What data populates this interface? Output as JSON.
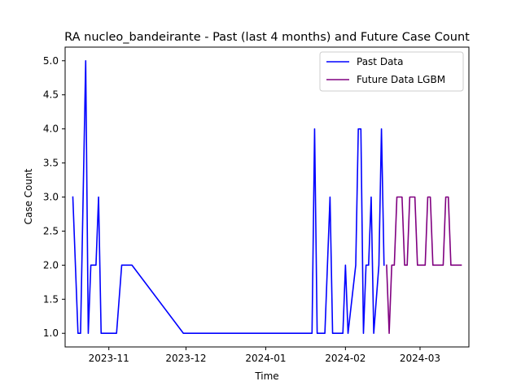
{
  "chart_data": {
    "type": "line",
    "title": "RA nucleo_bandeirante - Past (last 4 months) and Future Case Count",
    "xlabel": "Time",
    "ylabel": "Case Count",
    "xlim": [
      "2023-10-15",
      "2024-03-20"
    ],
    "ylim": [
      0.8,
      5.2
    ],
    "x_ticks": [
      {
        "date": "2023-11-01",
        "label": "2023-11"
      },
      {
        "date": "2023-12-01",
        "label": "2023-12"
      },
      {
        "date": "2024-01-01",
        "label": "2024-01"
      },
      {
        "date": "2024-02-01",
        "label": "2024-02"
      },
      {
        "date": "2024-03-01",
        "label": "2024-03"
      }
    ],
    "y_ticks": [
      {
        "value": 1.0,
        "label": "1.0"
      },
      {
        "value": 1.5,
        "label": "1.5"
      },
      {
        "value": 2.0,
        "label": "2.0"
      },
      {
        "value": 2.5,
        "label": "2.5"
      },
      {
        "value": 3.0,
        "label": "3.0"
      },
      {
        "value": 3.5,
        "label": "3.5"
      },
      {
        "value": 4.0,
        "label": "4.0"
      },
      {
        "value": 4.5,
        "label": "4.5"
      },
      {
        "value": 5.0,
        "label": "5.0"
      }
    ],
    "legend_position": "top-right",
    "grid": false,
    "series": [
      {
        "name": "Past Data",
        "color": "#0000ff",
        "points": [
          [
            "2023-10-18",
            3
          ],
          [
            "2023-10-20",
            1
          ],
          [
            "2023-10-21",
            1
          ],
          [
            "2023-10-23",
            5
          ],
          [
            "2023-10-24",
            1
          ],
          [
            "2023-10-25",
            2
          ],
          [
            "2023-10-27",
            2
          ],
          [
            "2023-10-28",
            3
          ],
          [
            "2023-10-29",
            1
          ],
          [
            "2023-11-04",
            1
          ],
          [
            "2023-11-06",
            2
          ],
          [
            "2023-11-10",
            2
          ],
          [
            "2023-11-30",
            1
          ],
          [
            "2024-01-19",
            1
          ],
          [
            "2024-01-20",
            4
          ],
          [
            "2024-01-21",
            1
          ],
          [
            "2024-01-24",
            1
          ],
          [
            "2024-01-26",
            3
          ],
          [
            "2024-01-27",
            1
          ],
          [
            "2024-01-31",
            1
          ],
          [
            "2024-02-01",
            2
          ],
          [
            "2024-02-02",
            1
          ],
          [
            "2024-02-05",
            2
          ],
          [
            "2024-02-06",
            4
          ],
          [
            "2024-02-07",
            4
          ],
          [
            "2024-02-08",
            1
          ],
          [
            "2024-02-09",
            2
          ],
          [
            "2024-02-10",
            2
          ],
          [
            "2024-02-11",
            3
          ],
          [
            "2024-02-12",
            1
          ],
          [
            "2024-02-14",
            2
          ],
          [
            "2024-02-15",
            4
          ],
          [
            "2024-02-16",
            2
          ]
        ]
      },
      {
        "name": "Future Data LGBM",
        "color": "#800080",
        "points": [
          [
            "2024-02-17",
            2
          ],
          [
            "2024-02-18",
            1
          ],
          [
            "2024-02-19",
            2
          ],
          [
            "2024-02-20",
            2
          ],
          [
            "2024-02-21",
            3
          ],
          [
            "2024-02-23",
            3
          ],
          [
            "2024-02-24",
            2
          ],
          [
            "2024-02-25",
            2
          ],
          [
            "2024-02-26",
            3
          ],
          [
            "2024-02-28",
            3
          ],
          [
            "2024-02-29",
            2
          ],
          [
            "2024-03-03",
            2
          ],
          [
            "2024-03-04",
            3
          ],
          [
            "2024-03-05",
            3
          ],
          [
            "2024-03-06",
            2
          ],
          [
            "2024-03-10",
            2
          ],
          [
            "2024-03-11",
            3
          ],
          [
            "2024-03-12",
            3
          ],
          [
            "2024-03-13",
            2
          ],
          [
            "2024-03-17",
            2
          ]
        ]
      }
    ]
  }
}
